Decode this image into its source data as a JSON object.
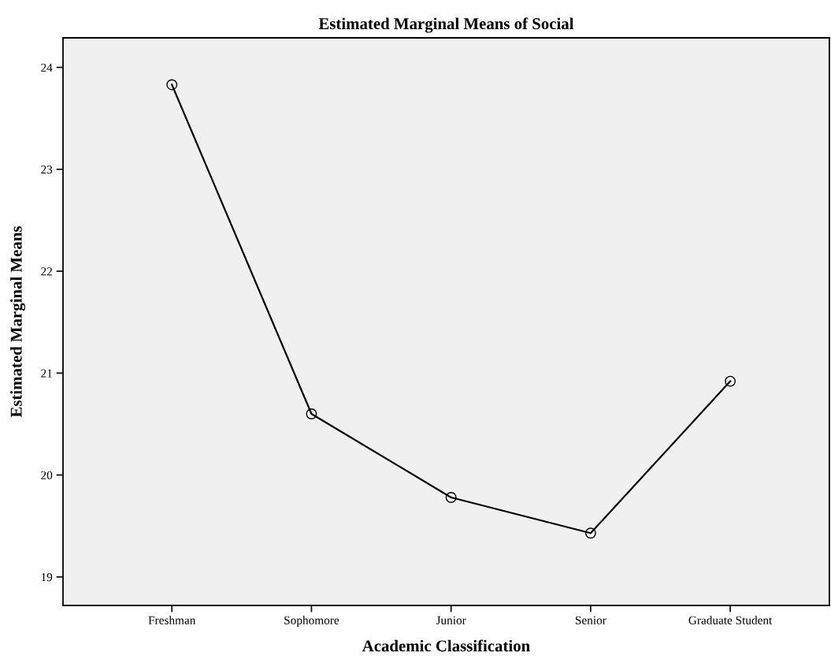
{
  "chart_data": {
    "type": "line",
    "title": "Estimated Marginal Means of Social",
    "xlabel": "Academic Classification",
    "ylabel": "Estimated Marginal Means",
    "categories": [
      "Freshman",
      "Sophomore",
      "Junior",
      "Senior",
      "Graduate Student"
    ],
    "series": [
      {
        "color": "#000000",
        "values": [
          23.83,
          20.6,
          19.78,
          19.43,
          20.92
        ]
      }
    ],
    "ylim": [
      18.72,
      24.29
    ],
    "yticks": [
      19,
      20,
      21,
      22,
      23,
      24
    ],
    "grid": false,
    "marker": "circle",
    "line_style": "solid"
  }
}
